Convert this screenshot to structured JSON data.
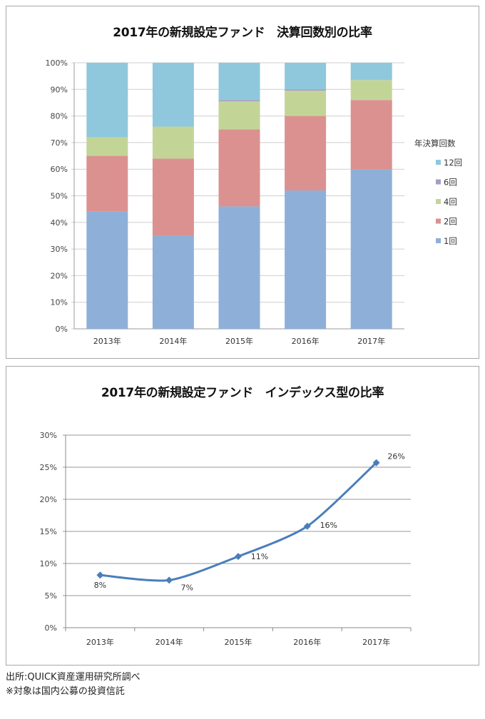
{
  "chart_data": [
    {
      "type": "bar",
      "stacked": true,
      "title": "2017年の新規設定ファンド　決算回数別の比率",
      "xlabel": "",
      "ylabel": "",
      "categories": [
        "2013年",
        "2014年",
        "2015年",
        "2016年",
        "2017年"
      ],
      "ylim": [
        0,
        100
      ],
      "yticks": [
        "0%",
        "10%",
        "20%",
        "30%",
        "40%",
        "50%",
        "60%",
        "70%",
        "80%",
        "90%",
        "100%"
      ],
      "grid": true,
      "legend_title": "年決算回数",
      "legend_position": "right",
      "legend": [
        "12回",
        "6回",
        "4回",
        "2回",
        "1回"
      ],
      "series": [
        {
          "name": "1回",
          "color": "#8eb0d8",
          "values": [
            44,
            35,
            46,
            52,
            60
          ]
        },
        {
          "name": "2回",
          "color": "#db9190",
          "values": [
            21,
            29,
            29,
            28,
            26
          ]
        },
        {
          "name": "4回",
          "color": "#c2d597",
          "values": [
            7,
            12,
            10.5,
            9.5,
            7.5
          ]
        },
        {
          "name": "6回",
          "color": "#a79cc0",
          "values": [
            0,
            0,
            0.5,
            0.5,
            0
          ]
        },
        {
          "name": "12回",
          "color": "#8fc8dd",
          "values": [
            28,
            24,
            14,
            10,
            6.5
          ]
        }
      ]
    },
    {
      "type": "line",
      "title": "2017年の新規設定ファンド　インデックス型の比率",
      "xlabel": "",
      "ylabel": "",
      "categories": [
        "2013年",
        "2014年",
        "2015年",
        "2016年",
        "2017年"
      ],
      "ylim": [
        0,
        30
      ],
      "yticks": [
        "0%",
        "5%",
        "10%",
        "15%",
        "20%",
        "25%",
        "30%"
      ],
      "grid": true,
      "legend_position": "none",
      "series": [
        {
          "name": "インデックス型の比率",
          "color": "#4a7ebb",
          "values": [
            8.2,
            7.4,
            11.1,
            15.8,
            25.7
          ],
          "labels": [
            "8%",
            "7%",
            "11%",
            "16%",
            "26%"
          ]
        }
      ]
    }
  ],
  "footnotes": {
    "source": "出所:QUICK資産運用研究所調べ",
    "note": "※対象は国内公募の投資信託"
  }
}
